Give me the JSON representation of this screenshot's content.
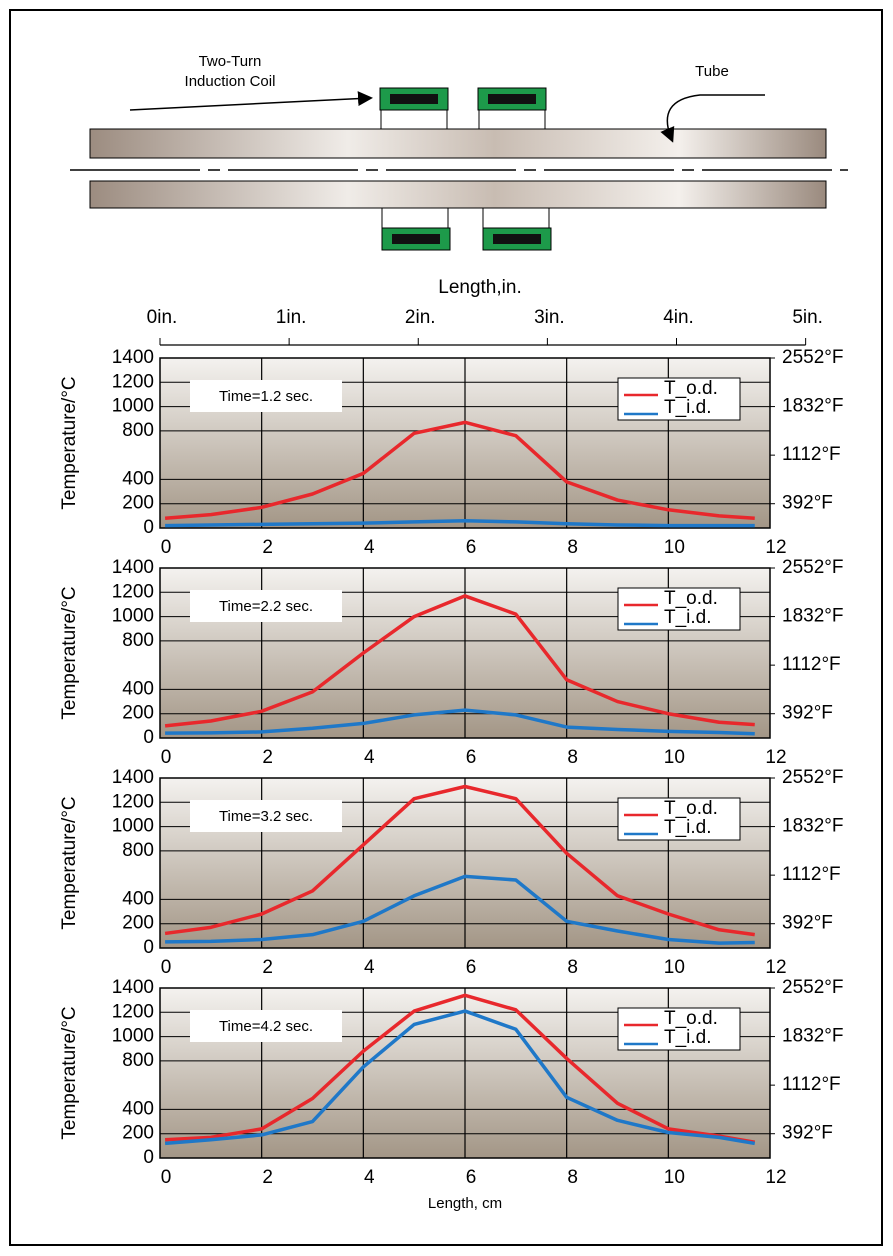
{
  "diagram": {
    "coil_label": [
      "Two-Turn",
      "Induction Coil"
    ],
    "tube_label": "Tube"
  },
  "chart_data": [
    {
      "type": "line",
      "annotation": "Time=1.2 sec.",
      "ylabel": "Temperature/°C",
      "x2label": "Length,in.",
      "x2lim": [
        0,
        4.724
      ],
      "x2ticks": [
        {
          "value": 0,
          "label": "0in."
        },
        {
          "value": 1,
          "label": "1in."
        },
        {
          "value": 2,
          "label": "2in."
        },
        {
          "value": 3,
          "label": "3in."
        },
        {
          "value": 4,
          "label": "4in."
        },
        {
          "value": 5,
          "label": "5in."
        }
      ],
      "x": [
        0.1,
        1,
        2,
        3,
        4,
        5,
        6,
        7,
        8,
        9,
        10,
        11,
        11.7
      ],
      "series": [
        {
          "name": "T_o.d.",
          "color": "#e8282c",
          "values": [
            80,
            110,
            170,
            280,
            450,
            780,
            870,
            760,
            380,
            230,
            150,
            100,
            80
          ]
        },
        {
          "name": "T_i.d.",
          "color": "#1f78c8",
          "values": [
            20,
            25,
            30,
            35,
            40,
            50,
            60,
            50,
            35,
            25,
            20,
            20,
            20
          ]
        }
      ],
      "xlim": [
        0,
        12
      ],
      "xticks": [
        0,
        2,
        4,
        6,
        8,
        10,
        12
      ],
      "ylim": [
        0,
        1400
      ],
      "yticks": [
        0,
        200,
        400,
        800,
        1000,
        1200,
        1400
      ],
      "y2lim": [
        32,
        2552
      ],
      "y2ticks": [
        {
          "value": 392,
          "label": "392°F"
        },
        {
          "value": 1112,
          "label": "1112°F"
        },
        {
          "value": 1832,
          "label": "1832°F"
        },
        {
          "value": 2552,
          "label": "2552°F"
        }
      ],
      "grid": true,
      "legend": "upper right"
    },
    {
      "type": "line",
      "annotation": "Time=2.2 sec.",
      "ylabel": "Temperature/°C",
      "x": [
        0.1,
        1,
        2,
        3,
        4,
        5,
        6,
        7,
        8,
        9,
        10,
        11,
        11.7
      ],
      "series": [
        {
          "name": "T_o.d.",
          "color": "#e8282c",
          "values": [
            100,
            140,
            220,
            380,
            700,
            1000,
            1170,
            1020,
            480,
            300,
            200,
            130,
            110
          ]
        },
        {
          "name": "T_i.d.",
          "color": "#1f78c8",
          "values": [
            40,
            42,
            50,
            80,
            120,
            190,
            230,
            190,
            90,
            70,
            55,
            45,
            35
          ]
        }
      ],
      "xlim": [
        0,
        12
      ],
      "xticks": [
        0,
        2,
        4,
        6,
        8,
        10,
        12
      ],
      "ylim": [
        0,
        1400
      ],
      "yticks": [
        0,
        200,
        400,
        800,
        1000,
        1200,
        1400
      ],
      "y2lim": [
        32,
        2552
      ],
      "y2ticks": [
        {
          "value": 392,
          "label": "392°F"
        },
        {
          "value": 1112,
          "label": "1112°F"
        },
        {
          "value": 1832,
          "label": "1832°F"
        },
        {
          "value": 2552,
          "label": "2552°F"
        }
      ],
      "grid": true,
      "legend": "upper right"
    },
    {
      "type": "line",
      "annotation": "Time=3.2 sec.",
      "ylabel": "Temperature/°C",
      "x": [
        0.1,
        1,
        2,
        3,
        4,
        5,
        6,
        7,
        8,
        9,
        10,
        11,
        11.7
      ],
      "series": [
        {
          "name": "T_o.d.",
          "color": "#e8282c",
          "values": [
            120,
            170,
            280,
            470,
            850,
            1230,
            1330,
            1230,
            780,
            430,
            280,
            150,
            110
          ]
        },
        {
          "name": "T_i.d.",
          "color": "#1f78c8",
          "values": [
            50,
            55,
            70,
            110,
            220,
            430,
            590,
            560,
            220,
            140,
            70,
            40,
            45
          ]
        }
      ],
      "xlim": [
        0,
        12
      ],
      "xticks": [
        0,
        2,
        4,
        6,
        8,
        10,
        12
      ],
      "ylim": [
        0,
        1400
      ],
      "yticks": [
        0,
        200,
        400,
        800,
        1000,
        1200,
        1400
      ],
      "y2lim": [
        32,
        2552
      ],
      "y2ticks": [
        {
          "value": 392,
          "label": "392°F"
        },
        {
          "value": 1112,
          "label": "1112°F"
        },
        {
          "value": 1832,
          "label": "1832°F"
        },
        {
          "value": 2552,
          "label": "2552°F"
        }
      ],
      "grid": true,
      "legend": "upper right"
    },
    {
      "type": "line",
      "annotation": "Time=4.2 sec.",
      "ylabel": "Temperature/°C",
      "xlabel": "Length, cm",
      "x": [
        0.1,
        1,
        2,
        3,
        4,
        5,
        6,
        7,
        8,
        9,
        10,
        11,
        11.7
      ],
      "series": [
        {
          "name": "T_o.d.",
          "color": "#e8282c",
          "values": [
            150,
            170,
            240,
            490,
            880,
            1210,
            1340,
            1220,
            820,
            450,
            240,
            180,
            130
          ]
        },
        {
          "name": "T_i.d.",
          "color": "#1f78c8",
          "values": [
            120,
            150,
            190,
            300,
            750,
            1100,
            1210,
            1060,
            500,
            310,
            210,
            170,
            120
          ]
        }
      ],
      "xlim": [
        0,
        12
      ],
      "xticks": [
        0,
        2,
        4,
        6,
        8,
        10,
        12
      ],
      "ylim": [
        0,
        1400
      ],
      "yticks": [
        0,
        200,
        400,
        800,
        1000,
        1200,
        1400
      ],
      "y2lim": [
        32,
        2552
      ],
      "y2ticks": [
        {
          "value": 392,
          "label": "392°F"
        },
        {
          "value": 1112,
          "label": "1112°F"
        },
        {
          "value": 1832,
          "label": "1832°F"
        },
        {
          "value": 2552,
          "label": "2552°F"
        }
      ],
      "grid": true,
      "legend": "upper right"
    }
  ]
}
